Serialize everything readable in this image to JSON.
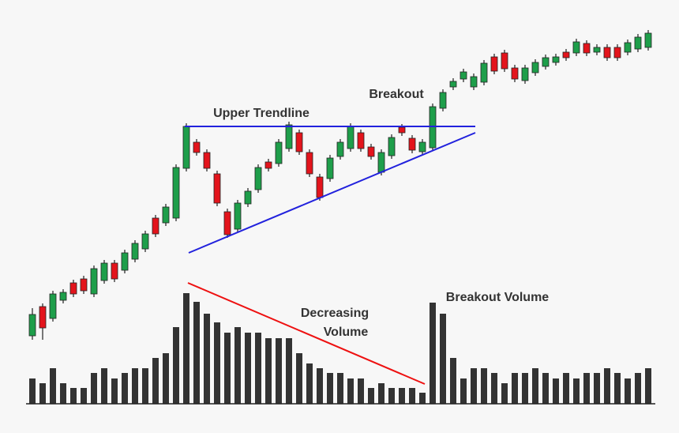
{
  "chart_data": {
    "type": "candlestick",
    "annotations": [
      "Upper Trendline",
      "Breakout",
      "Decreasing",
      "Volume",
      "Breakout Volume"
    ],
    "up_color": "#1e9e4a",
    "down_color": "#e3141c",
    "volume_color": "#333333",
    "ylim": [
      0,
      548
    ],
    "volume_ylim": [
      0,
      511
    ],
    "series": {
      "open": [
        123,
        160,
        145,
        168,
        190,
        195,
        176,
        193,
        215,
        206,
        220,
        233,
        272,
        266,
        272,
        335,
        368,
        355,
        328,
        280,
        258,
        290,
        308,
        343,
        341,
        360,
        380,
        355,
        324,
        322,
        350,
        360,
        380,
        362,
        330,
        351,
        387,
        373,
        356,
        361,
        411,
        438,
        448,
        438,
        444,
        476,
        481,
        462,
        446,
        456,
        464,
        469,
        482,
        481,
        493,
        482,
        488,
        488,
        482,
        486,
        488
      ],
      "high": [
        158,
        164,
        180,
        182,
        194,
        199,
        212,
        219,
        219,
        232,
        244,
        256,
        276,
        290,
        340,
        392,
        372,
        359,
        332,
        284,
        295,
        310,
        340,
        347,
        372,
        394,
        384,
        359,
        328,
        352,
        372,
        392,
        384,
        366,
        359,
        378,
        391,
        377,
        372,
        417,
        435,
        449,
        461,
        455,
        472,
        480,
        485,
        466,
        466,
        473,
        479,
        480,
        486,
        499,
        497,
        492,
        492,
        492,
        498,
        505,
        510
      ],
      "low": [
        118,
        118,
        141,
        164,
        172,
        176,
        172,
        189,
        191,
        202,
        216,
        229,
        248,
        262,
        268,
        331,
        351,
        331,
        287,
        247,
        254,
        286,
        304,
        331,
        337,
        356,
        352,
        324,
        294,
        318,
        346,
        356,
        356,
        346,
        326,
        347,
        376,
        354,
        352,
        357,
        407,
        434,
        444,
        434,
        440,
        454,
        457,
        444,
        442,
        452,
        460,
        465,
        471,
        477,
        477,
        478,
        471,
        471,
        478,
        482,
        484
      ],
      "close": [
        150,
        133,
        176,
        178,
        176,
        180,
        208,
        215,
        195,
        228,
        240,
        252,
        252,
        286,
        336,
        388,
        355,
        335,
        291,
        251,
        291,
        306,
        336,
        335,
        368,
        390,
        356,
        328,
        298,
        348,
        368,
        388,
        360,
        350,
        355,
        374,
        380,
        358,
        368,
        413,
        431,
        445,
        457,
        451,
        468,
        458,
        461,
        448,
        462,
        469,
        475,
        476,
        475,
        495,
        481,
        488,
        475,
        475,
        494,
        501,
        506
      ],
      "volume": [
        32,
        26,
        45,
        26,
        20,
        20,
        39,
        45,
        32,
        39,
        45,
        45,
        58,
        64,
        97,
        140,
        129,
        114,
        103,
        90,
        97,
        90,
        90,
        83,
        83,
        83,
        64,
        51,
        45,
        39,
        39,
        32,
        32,
        20,
        26,
        20,
        20,
        20,
        14,
        128,
        114,
        58,
        32,
        45,
        45,
        39,
        26,
        39,
        39,
        45,
        39,
        32,
        39,
        32,
        39,
        39,
        45,
        39,
        32,
        39,
        45
      ]
    }
  }
}
